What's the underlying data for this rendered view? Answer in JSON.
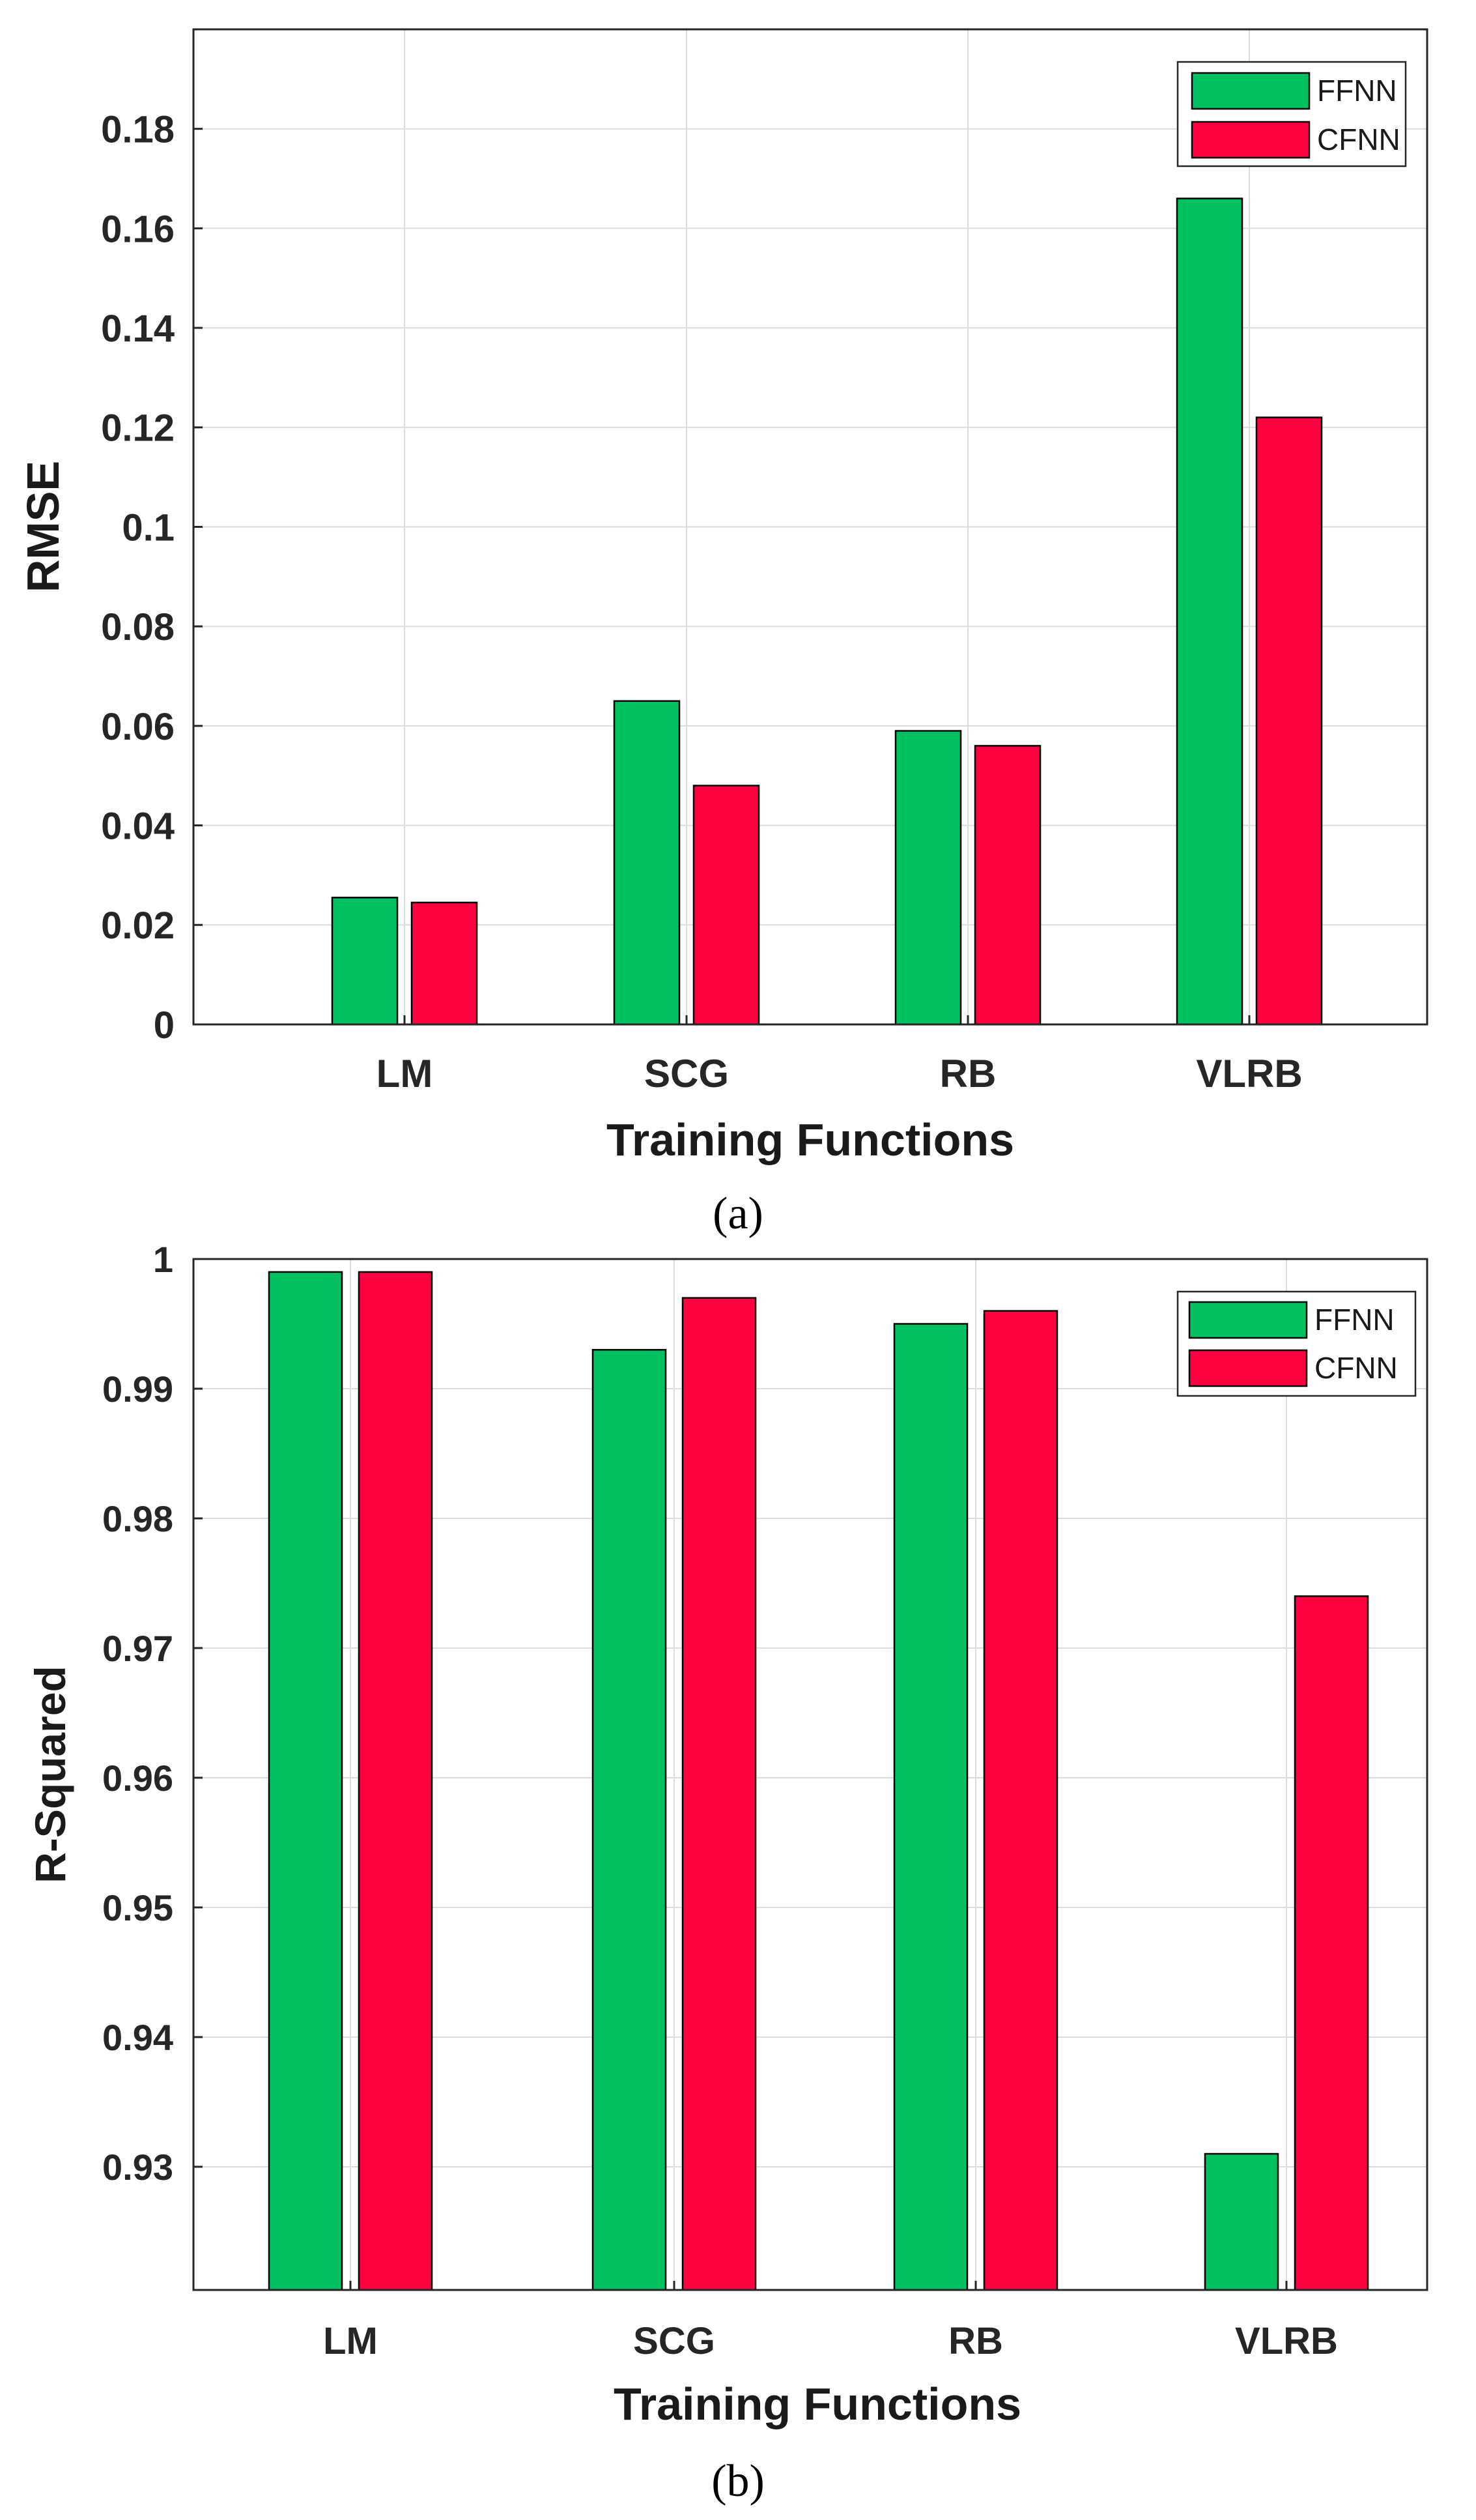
{
  "chart_data": [
    {
      "type": "bar",
      "caption": "(a)",
      "xlabel": "Training Functions",
      "ylabel": "RMSE",
      "categories": [
        "LM",
        "SCG",
        "RB",
        "VLRB"
      ],
      "series": [
        {
          "name": "FFNN",
          "color": "#00C060",
          "values": [
            0.0255,
            0.065,
            0.059,
            0.166
          ]
        },
        {
          "name": "CFNN",
          "color": "#FF0040",
          "values": [
            0.0245,
            0.048,
            0.056,
            0.122
          ]
        }
      ],
      "ylim": [
        0,
        0.2
      ],
      "yticks": [
        0,
        0.02,
        0.04,
        0.06,
        0.08,
        0.1,
        0.12,
        0.14,
        0.16,
        0.18
      ],
      "ytick_labels": [
        "0",
        "0.02",
        "0.04",
        "0.06",
        "0.08",
        "0.1",
        "0.12",
        "0.14",
        "0.16",
        "0.18"
      ],
      "grid": true,
      "legend": "top-right"
    },
    {
      "type": "bar",
      "caption": "(b)",
      "xlabel": "Training Functions",
      "ylabel": "R-Squared",
      "categories": [
        "LM",
        "SCG",
        "RB",
        "VLRB"
      ],
      "series": [
        {
          "name": "FFNN",
          "color": "#00C060",
          "values": [
            0.999,
            0.993,
            0.995,
            0.931
          ]
        },
        {
          "name": "CFNN",
          "color": "#FF0040",
          "values": [
            0.999,
            0.997,
            0.996,
            0.974
          ]
        }
      ],
      "ylim": [
        0.9205,
        1.0
      ],
      "yticks": [
        0.93,
        0.94,
        0.95,
        0.96,
        0.97,
        0.98,
        0.99,
        1.0
      ],
      "ytick_labels": [
        "0.93",
        "0.94",
        "0.95",
        "0.96",
        "0.97",
        "0.98",
        "0.99",
        "1"
      ],
      "grid": true,
      "legend": "top-right"
    }
  ]
}
